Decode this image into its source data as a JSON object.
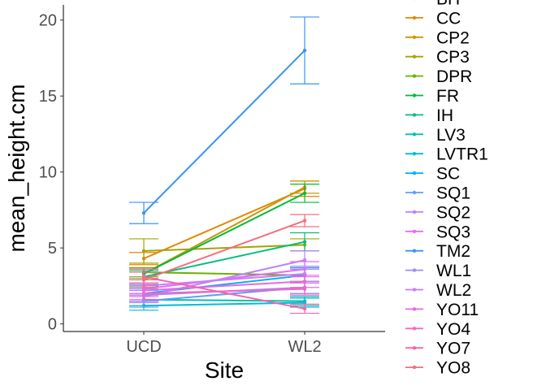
{
  "chart_data": {
    "type": "line",
    "title": "",
    "xlabel": "Site",
    "ylabel": "mean_height.cm",
    "categories": [
      "UCD",
      "WL2"
    ],
    "ylim": [
      -0.5,
      21
    ],
    "yticks": [
      0,
      5,
      10,
      15,
      20
    ],
    "grid": false,
    "legend_position": "right",
    "error_bars": true,
    "series": [
      {
        "name": "BH",
        "color": "#F8766D",
        "values": [
          null,
          null
        ],
        "err": [
          null,
          null
        ]
      },
      {
        "name": "CC",
        "color": "#E58700",
        "values": [
          4.3,
          8.9
        ],
        "err": [
          0.4,
          0.5
        ]
      },
      {
        "name": "CP2",
        "color": "#C99800",
        "values": [
          3.3,
          9.0
        ],
        "err": [
          0.4,
          0.4
        ]
      },
      {
        "name": "CP3",
        "color": "#A3A500",
        "values": [
          4.8,
          5.2
        ],
        "err": [
          0.8,
          0.4
        ]
      },
      {
        "name": "DPR",
        "color": "#6BB100",
        "values": [
          3.4,
          3.2
        ],
        "err": [
          0.3,
          0.4
        ]
      },
      {
        "name": "FR",
        "color": "#00BA38",
        "values": [
          3.3,
          8.6
        ],
        "err": [
          0.3,
          0.6
        ]
      },
      {
        "name": "IH",
        "color": "#00BF7D",
        "values": [
          3.1,
          5.4
        ],
        "err": [
          0.4,
          0.6
        ]
      },
      {
        "name": "LV3",
        "color": "#00C0AF",
        "values": [
          1.6,
          1.5
        ],
        "err": [
          0.4,
          0.3
        ]
      },
      {
        "name": "LVTR1",
        "color": "#00BCD8",
        "values": [
          1.2,
          1.4
        ],
        "err": [
          0.3,
          0.3
        ]
      },
      {
        "name": "SC",
        "color": "#00B0F6",
        "values": [
          2.0,
          3.2
        ],
        "err": [
          0.5,
          0.5
        ]
      },
      {
        "name": "SQ1",
        "color": "#619CFF",
        "values": [
          1.5,
          2.4
        ],
        "err": [
          0.4,
          0.4
        ]
      },
      {
        "name": "SQ2",
        "color": "#B983FF",
        "values": [
          1.8,
          4.2
        ],
        "err": [
          0.4,
          0.6
        ]
      },
      {
        "name": "SQ3",
        "color": "#E76BF3",
        "values": [
          2.3,
          3.6
        ],
        "err": [
          0.4,
          0.5
        ]
      },
      {
        "name": "TM2",
        "color": "#3A94EE",
        "values": [
          7.3,
          18.0
        ],
        "err": [
          0.7,
          2.2
        ]
      },
      {
        "name": "WL1",
        "color": "#9C8DF8",
        "values": [
          1.9,
          2.4
        ],
        "err": [
          0.4,
          0.4
        ]
      },
      {
        "name": "WL2",
        "color": "#C77CFF",
        "values": [
          2.5,
          3.3
        ],
        "err": [
          0.5,
          0.5
        ]
      },
      {
        "name": "YO11",
        "color": "#E869E0",
        "values": [
          2.2,
          2.8
        ],
        "err": [
          0.4,
          0.4
        ]
      },
      {
        "name": "YO4",
        "color": "#F863C7",
        "values": [
          2.0,
          2.3
        ],
        "err": [
          0.4,
          0.4
        ]
      },
      {
        "name": "YO7",
        "color": "#FA62A8",
        "values": [
          3.1,
          1.0
        ],
        "err": [
          0.5,
          0.3
        ]
      },
      {
        "name": "YO8",
        "color": "#F2707D",
        "values": [
          2.9,
          6.8
        ],
        "err": [
          0.5,
          0.4
        ]
      }
    ]
  }
}
